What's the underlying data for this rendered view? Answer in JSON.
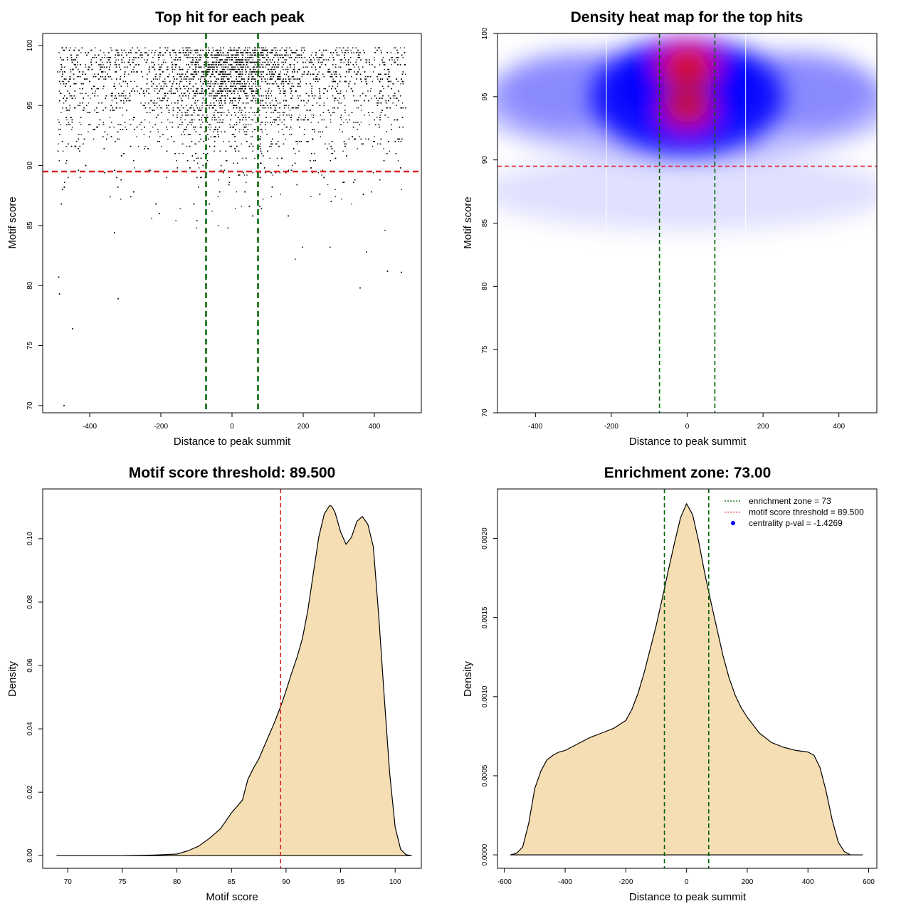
{
  "chart_data": [
    {
      "id": "scatter",
      "type": "scatter",
      "title": "Top hit for each peak",
      "xlabel": "Distance to peak summit",
      "ylabel": "Motif score",
      "xlim": [
        -532,
        532
      ],
      "ylim": [
        69.4,
        101
      ],
      "xticks": [
        -400,
        -200,
        0,
        200,
        400
      ],
      "yticks": [
        70,
        75,
        80,
        85,
        90,
        95,
        100
      ],
      "vlines": [
        -73,
        73
      ],
      "hline": 89.5,
      "vline_color": "#006400",
      "hline_color": "#dd2222",
      "outlier_points": [
        {
          "x": -472,
          "y": 70.0
        },
        {
          "x": -448,
          "y": 76.4
        },
        {
          "x": -485,
          "y": 79.3
        },
        {
          "x": -320,
          "y": 78.9
        },
        {
          "x": 360,
          "y": 79.8
        },
        {
          "x": -487,
          "y": 80.7
        },
        {
          "x": 437,
          "y": 81.2
        },
        {
          "x": 476,
          "y": 81.1
        }
      ],
      "point_color": "#000000"
    },
    {
      "id": "heatmap",
      "type": "heatmap",
      "title": "Density heat map for the top hits",
      "xlabel": "Distance to peak summit",
      "ylabel": "Motif score",
      "xlim": [
        -500,
        500
      ],
      "ylim": [
        70,
        100
      ],
      "xticks": [
        -400,
        -200,
        0,
        200,
        400
      ],
      "yticks": [
        70,
        75,
        80,
        85,
        90,
        95,
        100
      ],
      "vlines": [
        -73,
        73
      ],
      "hline": 89.5,
      "vline_color": "#006400",
      "hline_color": "#dd2222",
      "colors": [
        "#ffffff",
        "#0000ff",
        "#ff0000"
      ],
      "hotspots": [
        {
          "x": 0,
          "y": 97.5,
          "level": 1.0
        },
        {
          "x": 0,
          "y": 94.0,
          "level": 0.88
        }
      ]
    },
    {
      "id": "score_density",
      "type": "area",
      "title": "Motif score threshold: 89.500",
      "xlabel": "Motif score",
      "ylabel": "Density",
      "xlim": [
        67.7,
        102.4
      ],
      "ylim": [
        -0.004,
        0.1157
      ],
      "xticks": [
        70,
        75,
        80,
        85,
        90,
        95,
        100
      ],
      "yticks": [
        0.0,
        0.02,
        0.04,
        0.06,
        0.08,
        0.1
      ],
      "ytick_labels": [
        "0.00",
        "0.02",
        "0.04",
        "0.06",
        "0.08",
        "0.10"
      ],
      "vline": 89.5,
      "vline_color": "#dd2222",
      "fill": "#f5deb3",
      "x": [
        69,
        72,
        75,
        77,
        78,
        80,
        81,
        82,
        83,
        84,
        84.5,
        85,
        86,
        86.5,
        87,
        87.5,
        88,
        88.5,
        89,
        89.5,
        90,
        90.5,
        91,
        91.5,
        92,
        92.5,
        93,
        93.5,
        94,
        94.2,
        94.5,
        95,
        95.5,
        96,
        96.5,
        97,
        97.5,
        98,
        98.5,
        99,
        99.5,
        100,
        100.5,
        101,
        101.5
      ],
      "values": [
        0.0,
        0.0,
        0.0,
        0.0001,
        0.0002,
        0.0005,
        0.0015,
        0.003,
        0.0055,
        0.0085,
        0.011,
        0.0135,
        0.0175,
        0.024,
        0.0275,
        0.0305,
        0.0345,
        0.0385,
        0.0425,
        0.047,
        0.052,
        0.0575,
        0.0625,
        0.0685,
        0.0775,
        0.089,
        0.1005,
        0.1078,
        0.1105,
        0.1102,
        0.1082,
        0.1022,
        0.0982,
        0.1005,
        0.1055,
        0.107,
        0.1045,
        0.0975,
        0.0755,
        0.05,
        0.026,
        0.009,
        0.002,
        0.0003,
        0.0
      ]
    },
    {
      "id": "dist_density",
      "type": "area",
      "title": "Enrichment zone: 73.00",
      "xlabel": "Distance to peak summit",
      "ylabel": "Density",
      "xlim": [
        -623,
        627
      ],
      "ylim": [
        -8.5e-05,
        0.002313
      ],
      "xticks": [
        -600,
        -400,
        -200,
        0,
        200,
        400,
        600
      ],
      "yticks": [
        0.0,
        0.0005,
        0.001,
        0.0015,
        0.002
      ],
      "ytick_labels": [
        "0.0000",
        "0.0005",
        "0.0010",
        "0.0015",
        "0.0020"
      ],
      "vlines": [
        -73,
        73
      ],
      "vline_color": "#006400",
      "fill": "#f5deb3",
      "x": [
        -580,
        -560,
        -540,
        -520,
        -500,
        -480,
        -460,
        -440,
        -420,
        -400,
        -360,
        -320,
        -280,
        -240,
        -200,
        -180,
        -160,
        -140,
        -120,
        -100,
        -80,
        -60,
        -40,
        -20,
        0,
        20,
        40,
        60,
        80,
        100,
        120,
        140,
        160,
        180,
        200,
        240,
        280,
        320,
        360,
        400,
        420,
        440,
        460,
        480,
        500,
        520,
        540,
        560,
        580
      ],
      "values": [
        0.0,
        1e-05,
        5e-05,
        0.0002,
        0.00042,
        0.00053,
        0.0006,
        0.00063,
        0.00065,
        0.00066,
        0.0007,
        0.00074,
        0.00077,
        0.0008,
        0.00085,
        0.00092,
        0.00102,
        0.00115,
        0.0013,
        0.00145,
        0.00162,
        0.0018,
        0.00197,
        0.00213,
        0.00222,
        0.00215,
        0.00198,
        0.00178,
        0.0016,
        0.00143,
        0.00126,
        0.00112,
        0.00101,
        0.00093,
        0.00087,
        0.00077,
        0.00071,
        0.00068,
        0.00066,
        0.00065,
        0.00063,
        0.00055,
        0.0004,
        0.00022,
        8e-05,
        2e-05,
        0.0,
        0.0,
        0.0
      ],
      "legend": {
        "position": "top-right",
        "entries": [
          {
            "label": "enrichment zone = 73",
            "color": "#006400",
            "kind": "line"
          },
          {
            "label": "motif score threshold = 89.500",
            "color": "#dd2222",
            "kind": "line"
          },
          {
            "label": "centrality p-val = -1.4269",
            "color": "#0000ff",
            "kind": "point"
          }
        ]
      }
    }
  ]
}
